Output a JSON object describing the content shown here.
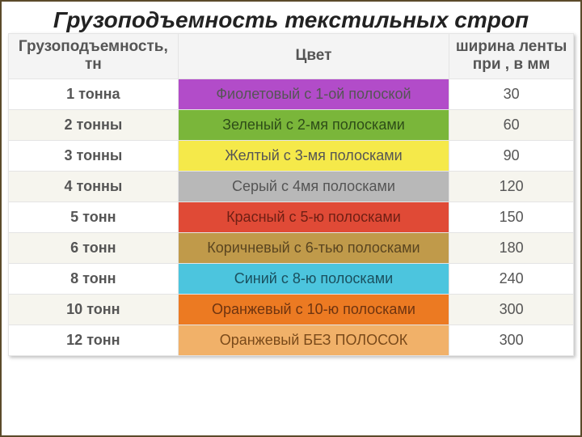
{
  "title": "Грузоподъемность текстильных строп",
  "columns": {
    "capacity": "Грузоподъемность,\nтн",
    "color": "Цвет",
    "width": "ширина ленты\nпри , в мм"
  },
  "col_widths": [
    "30%",
    "48%",
    "22%"
  ],
  "header_bg": "#f4f4f4",
  "row_bg_even": "#f6f5ee",
  "row_bg_odd": "#ffffff",
  "border_color": "#e4e4e4",
  "page_border_color": "#5b4a2a",
  "text_color": "#555555",
  "title_color": "#222222",
  "title_fontsize": 28,
  "cell_fontsize": 18,
  "header_fontsize": 19,
  "rows": [
    {
      "capacity": "1 тонна",
      "color_label": "Фиолетовый с 1-ой полоской",
      "width": "30",
      "swatch_bg": "#b24cc9",
      "swatch_text": "#555555"
    },
    {
      "capacity": "2 тонны",
      "color_label": "Зеленый с 2-мя полосками",
      "width": "60",
      "swatch_bg": "#7ab63a",
      "swatch_text": "#2e4d18"
    },
    {
      "capacity": "3 тонны",
      "color_label": "Желтый с 3-мя полосками",
      "width": "90",
      "swatch_bg": "#f5e94a",
      "swatch_text": "#555555"
    },
    {
      "capacity": "4 тонны",
      "color_label": "Серый с 4мя полосками",
      "width": "120",
      "swatch_bg": "#b8b8b8",
      "swatch_text": "#555555"
    },
    {
      "capacity": "5 тонн",
      "color_label": "Красный с 5-ю полосками",
      "width": "150",
      "swatch_bg": "#e04a36",
      "swatch_text": "#6e1f14"
    },
    {
      "capacity": "6 тонн",
      "color_label": "Коричневый с 6-тью полосками",
      "width": "180",
      "swatch_bg": "#c09a4a",
      "swatch_text": "#5a4520"
    },
    {
      "capacity": "8 тонн",
      "color_label": "Синий с 8-ю полосками",
      "width": "240",
      "swatch_bg": "#4cc5de",
      "swatch_text": "#1a4f5e"
    },
    {
      "capacity": "10 тонн",
      "color_label": "Оранжевый с 10-ю полосками",
      "width": "300",
      "swatch_bg": "#ec7a22",
      "swatch_text": "#6e3410"
    },
    {
      "capacity": "12 тонн",
      "color_label": "Оранжевый БЕЗ ПОЛОСОК",
      "width": "300",
      "swatch_bg": "#f1b169",
      "swatch_text": "#7a4a1a"
    }
  ]
}
